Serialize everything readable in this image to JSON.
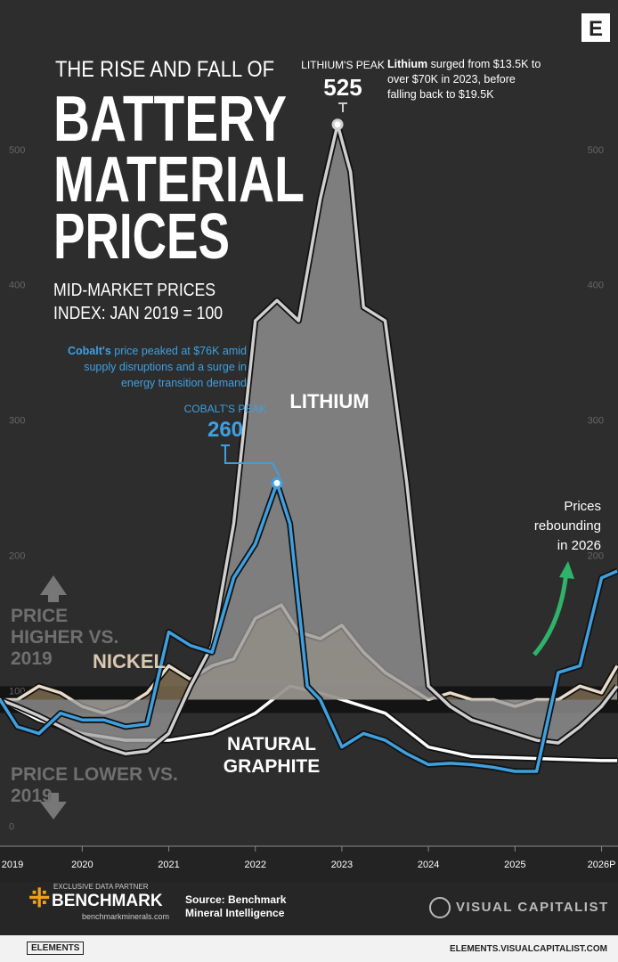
{
  "brand_logo": "E",
  "title": {
    "kicker": "THE RISE AND FALL OF",
    "lines": [
      "BATTERY",
      "MATERIAL",
      "PRICES"
    ],
    "subtitle": "MID-MARKET PRICES",
    "index_note": "INDEX: JAN 2019 = 100"
  },
  "chart_data": {
    "type": "line",
    "xlim": [
      2019.05,
      2026.19
    ],
    "ylim": [
      -5,
      617
    ],
    "xticks": [
      2019,
      2020,
      2021,
      2022,
      2023,
      2024,
      2025,
      {
        "value": 2026,
        "label": "2026P"
      }
    ],
    "yticks": [
      0,
      100,
      200,
      300,
      400,
      500
    ],
    "series": [
      {
        "name": "LITHIUM",
        "color": "#cfcfcf",
        "fill": "#9a9a9a",
        "x": [
          2019.05,
          2019.25,
          2019.5,
          2019.75,
          2020,
          2020.25,
          2020.5,
          2020.75,
          2021,
          2021.25,
          2021.5,
          2021.75,
          2022,
          2022.25,
          2022.5,
          2022.75,
          2022.95,
          2023.1,
          2023.25,
          2023.5,
          2023.75,
          2024,
          2024.25,
          2024.5,
          2024.75,
          2025,
          2025.25,
          2025.5,
          2025.75,
          2026,
          2026.18
        ],
        "values": [
          100,
          95,
          88,
          80,
          72,
          65,
          60,
          62,
          75,
          110,
          140,
          230,
          380,
          395,
          380,
          470,
          525,
          490,
          390,
          380,
          260,
          110,
          95,
          85,
          80,
          75,
          70,
          68,
          80,
          95,
          110
        ]
      },
      {
        "color": "#3fa0e0",
        "x": [
          2019.05,
          2019.25,
          2019.5,
          2019.75,
          2020,
          2020.25,
          2020.5,
          2020.75,
          2021,
          2021.25,
          2021.5,
          2021.75,
          2022,
          2022.25,
          2022.4,
          2022.6,
          2022.75,
          2023,
          2023.25,
          2023.5,
          2023.75,
          2024,
          2024.25,
          2024.5,
          2024.75,
          2025,
          2025.25,
          2025.5,
          2025.75,
          2026,
          2026.18
        ],
        "values": [
          100,
          80,
          75,
          90,
          85,
          85,
          80,
          82,
          150,
          140,
          135,
          190,
          215,
          260,
          230,
          110,
          100,
          65,
          75,
          70,
          60,
          52,
          53,
          52,
          50,
          47,
          47,
          120,
          125,
          190,
          195
        ]
      },
      {
        "name": "NICKEL",
        "color": "#e8dccb",
        "fill": "#8a7558",
        "x": [
          2019.05,
          2019.25,
          2019.5,
          2019.75,
          2020,
          2020.25,
          2020.5,
          2020.75,
          2021,
          2021.25,
          2021.5,
          2021.75,
          2022,
          2022.3,
          2022.5,
          2022.75,
          2023,
          2023.25,
          2023.5,
          2023.75,
          2024,
          2024.25,
          2024.5,
          2024.75,
          2025,
          2025.25,
          2025.5,
          2025.75,
          2026,
          2026.18
        ],
        "values": [
          100,
          100,
          110,
          105,
          95,
          90,
          95,
          105,
          125,
          115,
          125,
          130,
          160,
          170,
          150,
          145,
          155,
          135,
          120,
          110,
          100,
          105,
          100,
          100,
          95,
          100,
          100,
          110,
          105,
          125
        ]
      },
      {
        "name": "NATURAL GRAPHITE",
        "color": "#ffffff",
        "x": [
          2019.05,
          2019.5,
          2020,
          2020.5,
          2021,
          2021.5,
          2022,
          2022.4,
          2022.75,
          2023,
          2023.5,
          2024,
          2024.5,
          2025,
          2025.5,
          2026,
          2026.18
        ],
        "values": [
          100,
          85,
          75,
          70,
          70,
          75,
          90,
          110,
          105,
          100,
          90,
          65,
          58,
          57,
          56,
          55,
          55
        ]
      }
    ],
    "peak_labels": {
      "lithium": "LITHIUM'S PEAK",
      "cobalt": "COBALT'S PEAK"
    },
    "lithium_note": {
      "lead": "Lithium",
      "text": "surged from $13.5K to over $70K in 2023, before falling back to $19.5K"
    },
    "cobalt_note": {
      "lead": "Cobalt's",
      "text": "price peaked at $76K amid supply disruptions and a surge in energy transition demand"
    },
    "rebound_note": "Prices rebounding in 2026",
    "higher_label": "PRICE HIGHER VS. 2019",
    "lower_label": "PRICE LOWER VS. 2019"
  },
  "footer": {
    "partner_label": "EXCLUSIVE DATA PARTNER",
    "partner": "BENCHMARK",
    "partner_url": "benchmarkminerals.com",
    "source": "Source: Benchmark Mineral Intelligence",
    "publisher": "VISUAL CAPITALIST",
    "series_name": "ELEMENTS",
    "url": "ELEMENTS.VISUALCAPITALIST.COM"
  }
}
